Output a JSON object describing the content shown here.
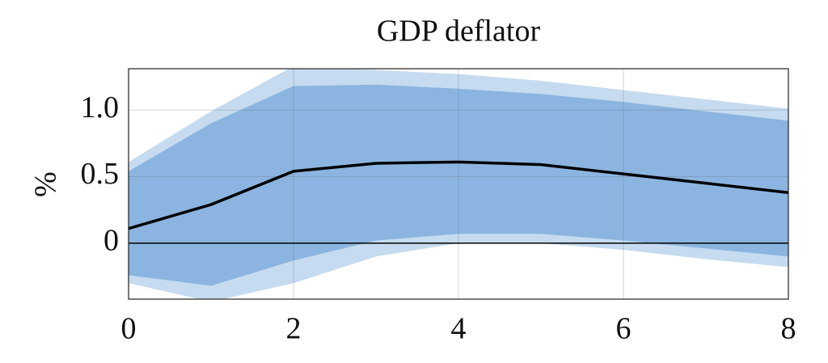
{
  "chart_data": {
    "type": "line",
    "title": "GDP deflator",
    "y_label": "%",
    "x": [
      0,
      1,
      2,
      3,
      4,
      5,
      6,
      7,
      8
    ],
    "series": [
      {
        "color": "#000000",
        "values": [
          0.11,
          0.29,
          0.54,
          0.6,
          0.61,
          0.59,
          0.52,
          0.45,
          0.38
        ]
      }
    ],
    "bands": [
      {
        "color": "#c6dbef",
        "upper": [
          0.61,
          0.99,
          1.33,
          1.3,
          1.27,
          1.22,
          1.15,
          1.08,
          1.01
        ],
        "lower": [
          -0.3,
          -0.44,
          -0.3,
          -0.1,
          0.0,
          0.0,
          -0.05,
          -0.12,
          -0.18
        ]
      },
      {
        "color": "#8bb5e0",
        "upper": [
          0.54,
          0.9,
          1.18,
          1.19,
          1.16,
          1.12,
          1.06,
          0.99,
          0.92
        ],
        "lower": [
          -0.24,
          -0.32,
          -0.13,
          0.02,
          0.07,
          0.07,
          0.02,
          -0.04,
          -0.1
        ]
      }
    ],
    "xlim": [
      0,
      8
    ],
    "xticks": [
      0,
      2,
      4,
      6,
      8
    ],
    "ylim": [
      -0.42,
      1.31
    ],
    "yticks": [
      0,
      0.5,
      {
        "value": 1,
        "label": "1.0"
      }
    ],
    "grid": true,
    "zero_line": true
  }
}
